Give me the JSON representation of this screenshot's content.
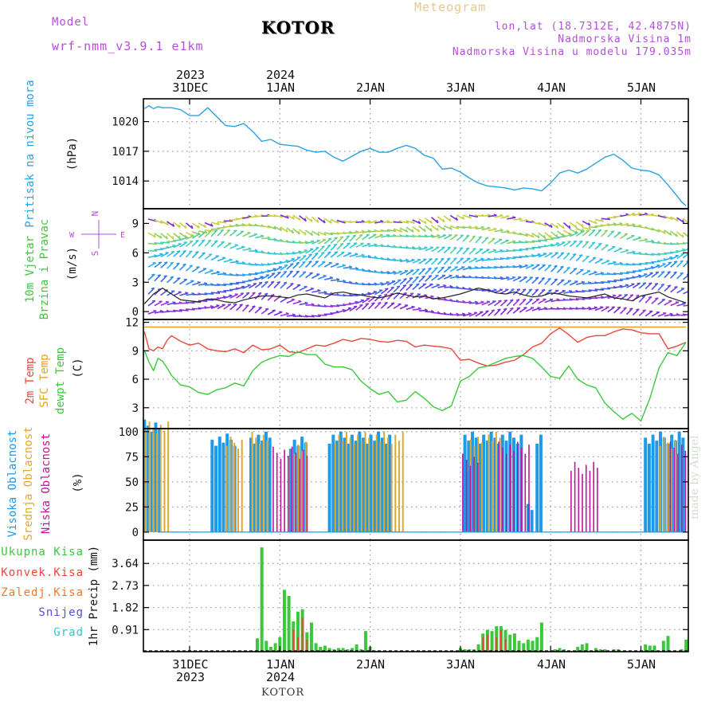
{
  "header": {
    "model_label": "Model",
    "model_name": "wrf-nmm_v3.9.1  e1km",
    "station": "KOTOR",
    "meteogram": "Meteogram",
    "lonlat": "lon,lat (18.7312E, 42.4875N)",
    "altitude": "Nadmorska Visina 1m",
    "model_altitude": "Nadmorska Visina u modelu 179.035m",
    "footer_station": "KOTOR",
    "watermark": "made by Angel"
  },
  "date_axis": {
    "top": [
      {
        "year": "2023",
        "day": "31DEC",
        "day_index": 0
      },
      {
        "year": "2024",
        "day": "1JAN",
        "day_index": 1
      },
      {
        "year": "",
        "day": "2JAN",
        "day_index": 2
      },
      {
        "year": "",
        "day": "3JAN",
        "day_index": 3
      },
      {
        "year": "",
        "day": "4JAN",
        "day_index": 4
      },
      {
        "year": "",
        "day": "5JAN",
        "day_index": 5
      }
    ],
    "bottom": [
      {
        "day": "31DEC",
        "year": "2023",
        "day_index": 0
      },
      {
        "day": "1JAN",
        "year": "2024",
        "day_index": 1
      },
      {
        "day": "2JAN",
        "year": "",
        "day_index": 2
      },
      {
        "day": "3JAN",
        "year": "",
        "day_index": 3
      },
      {
        "day": "4JAN",
        "year": "",
        "day_index": 4
      },
      {
        "day": "5JAN",
        "year": "",
        "day_index": 5
      }
    ]
  },
  "colors": {
    "pressure": "#2aa3e0",
    "temp2m": "#e8483c",
    "sfc_temp": "#e8a020",
    "dewpoint": "#3cc83c",
    "high_cloud": "#1e9be8",
    "mid_cloud": "#e0a830",
    "low_cloud": "#c0149a",
    "total_precip": "#3cc83c",
    "conv_precip": "#e8483c",
    "frozen_precip": "#f07a2a",
    "snow": "#5050e0",
    "hail": "#30c8c8",
    "wind_speed": "#222222",
    "axis_label_purple": "#b44fd8"
  },
  "chart_data": [
    {
      "type": "line",
      "panel": "pressure",
      "ylabel": [
        "Pritisak na nivou mora",
        "(hPa)"
      ],
      "yticks": [
        1014,
        1017,
        1020
      ],
      "ylim": [
        1011.2,
        1022.3
      ],
      "grid": true,
      "series": [
        {
          "name": "Pritisak na nivou mora",
          "x": [
            -0.5,
            -0.45,
            -0.4,
            -0.35,
            -0.3,
            -0.2,
            -0.1,
            0,
            0.1,
            0.2,
            0.3,
            0.4,
            0.5,
            0.6,
            0.7,
            0.8,
            0.9,
            1.0,
            1.1,
            1.2,
            1.3,
            1.4,
            1.5,
            1.6,
            1.7,
            1.8,
            1.9,
            2.0,
            2.1,
            2.2,
            2.3,
            2.4,
            2.5,
            2.6,
            2.7,
            2.8,
            2.9,
            3.0,
            3.1,
            3.2,
            3.3,
            3.4,
            3.5,
            3.6,
            3.7,
            3.8,
            3.9,
            4.0,
            4.1,
            4.2,
            4.3,
            4.4,
            4.5,
            4.6,
            4.7,
            4.8,
            4.9,
            5.0,
            5.1,
            5.2,
            5.3,
            5.4,
            5.45,
            5.5
          ],
          "y": [
            1021.3,
            1021.6,
            1021.3,
            1021.5,
            1021.4,
            1021.4,
            1021.2,
            1020.6,
            1020.6,
            1021.4,
            1020.5,
            1019.6,
            1019.5,
            1019.8,
            1019.0,
            1018.0,
            1018.2,
            1017.7,
            1017.6,
            1017.5,
            1017.1,
            1016.9,
            1017.0,
            1016.4,
            1016.0,
            1016.5,
            1017.0,
            1017.3,
            1016.9,
            1016.9,
            1017.3,
            1017.6,
            1017.3,
            1016.6,
            1016.3,
            1015.2,
            1015.3,
            1014.9,
            1014.3,
            1013.8,
            1013.5,
            1013.4,
            1013.3,
            1013.1,
            1013.3,
            1013.2,
            1013.0,
            1013.8,
            1014.8,
            1015.1,
            1014.8,
            1015.2,
            1015.8,
            1016.4,
            1016.7,
            1016.1,
            1015.3,
            1015.1,
            1015.0,
            1014.6,
            1013.6,
            1012.5,
            1011.9,
            1011.5
          ]
        }
      ]
    },
    {
      "type": "line",
      "panel": "wind",
      "ylabel": [
        "10m Vjetar",
        "Brzina i Pravac",
        "(m/s)"
      ],
      "compass": [
        "N",
        "S",
        "W",
        "E"
      ],
      "yticks": [
        0,
        3,
        6,
        9
      ],
      "ylim": [
        -0.8,
        10.5
      ],
      "series": [
        {
          "name": "Brzina",
          "x": [
            -0.5,
            -0.4,
            -0.3,
            -0.2,
            -0.1,
            0,
            0.1,
            0.2,
            0.3,
            0.4,
            0.5,
            0.6,
            0.7,
            0.8,
            0.9,
            1.0,
            1.1,
            1.2,
            1.3,
            1.4,
            1.5,
            1.6,
            1.7,
            1.8,
            1.9,
            2.0,
            2.1,
            2.2,
            2.3,
            2.4,
            2.5,
            2.6,
            2.7,
            2.8,
            2.9,
            3.0,
            3.1,
            3.2,
            3.3,
            3.4,
            3.5,
            3.6,
            3.7,
            3.8,
            3.9,
            4.0,
            4.1,
            4.2,
            4.3,
            4.4,
            4.5,
            4.6,
            4.7,
            4.8,
            4.9,
            5.0,
            5.1,
            5.2,
            5.3,
            5.4,
            5.5
          ],
          "y": [
            0.8,
            1.8,
            2.4,
            1.8,
            1.2,
            1.1,
            1.0,
            1.3,
            1.2,
            1.0,
            0.9,
            1.2,
            1.4,
            1.6,
            1.6,
            1.5,
            1.4,
            1.7,
            1.8,
            1.6,
            1.4,
            1.9,
            2.0,
            1.8,
            1.7,
            1.5,
            1.4,
            1.6,
            1.9,
            1.7,
            1.5,
            1.6,
            1.3,
            1.4,
            1.6,
            1.8,
            2.1,
            2.4,
            2.2,
            1.9,
            1.8,
            2.0,
            1.7,
            1.5,
            1.6,
            1.9,
            1.8,
            1.6,
            1.5,
            1.4,
            1.6,
            1.8,
            1.4,
            1.3,
            1.1,
            1.6,
            1.8,
            2.0,
            1.5,
            1.2,
            0.9
          ]
        }
      ]
    },
    {
      "type": "line",
      "panel": "temperature",
      "ylabel": [
        "2m Temp",
        "SFC Temp",
        "dewpt Temp",
        "(C)"
      ],
      "yticks": [
        3,
        6,
        9,
        12
      ],
      "ylim": [
        0.8,
        12.3
      ],
      "grid": true,
      "series": [
        {
          "name": "2m Temp",
          "x": [
            -0.5,
            -0.45,
            -0.4,
            -0.35,
            -0.3,
            -0.25,
            -0.2,
            -0.1,
            0,
            0.1,
            0.2,
            0.3,
            0.4,
            0.5,
            0.6,
            0.7,
            0.8,
            0.9,
            1.0,
            1.1,
            1.2,
            1.3,
            1.4,
            1.5,
            1.6,
            1.7,
            1.8,
            1.9,
            2.0,
            2.1,
            2.2,
            2.3,
            2.4,
            2.5,
            2.6,
            2.7,
            2.8,
            2.9,
            3.0,
            3.1,
            3.2,
            3.3,
            3.4,
            3.5,
            3.6,
            3.7,
            3.8,
            3.9,
            4.0,
            4.1,
            4.2,
            4.3,
            4.4,
            4.5,
            4.6,
            4.7,
            4.8,
            4.9,
            5.0,
            5.1,
            5.2,
            5.3,
            5.4,
            5.5
          ],
          "y": [
            11.0,
            9.2,
            9.0,
            9.4,
            9.2,
            10.1,
            10.6,
            10.0,
            9.6,
            9.8,
            9.2,
            9.0,
            8.9,
            9.2,
            8.8,
            9.6,
            9.1,
            9.2,
            9.6,
            8.9,
            8.8,
            9.2,
            9.6,
            9.5,
            9.8,
            10.2,
            10.0,
            10.3,
            10.2,
            10.0,
            9.9,
            10.1,
            10.0,
            9.4,
            9.6,
            9.5,
            9.4,
            9.2,
            8.0,
            8.1,
            7.7,
            7.4,
            7.5,
            7.8,
            8.0,
            8.6,
            9.4,
            9.8,
            10.8,
            11.4,
            10.7,
            9.9,
            10.4,
            10.6,
            10.6,
            11.0,
            11.3,
            11.2,
            10.9,
            10.8,
            10.8,
            9.2,
            9.5,
            9.9
          ]
        },
        {
          "name": "SFC Temp",
          "x": [
            -0.5,
            5.5
          ],
          "y": [
            11.5,
            11.5
          ]
        },
        {
          "name": "dewpt Temp",
          "x": [
            -0.5,
            -0.45,
            -0.4,
            -0.35,
            -0.3,
            -0.25,
            -0.2,
            -0.1,
            0,
            0.1,
            0.2,
            0.3,
            0.4,
            0.5,
            0.6,
            0.7,
            0.8,
            0.9,
            1.0,
            1.1,
            1.2,
            1.3,
            1.4,
            1.5,
            1.6,
            1.7,
            1.8,
            1.9,
            2.0,
            2.1,
            2.2,
            2.3,
            2.4,
            2.5,
            2.6,
            2.7,
            2.8,
            2.9,
            3.0,
            3.1,
            3.2,
            3.3,
            3.4,
            3.5,
            3.6,
            3.7,
            3.8,
            3.9,
            4.0,
            4.1,
            4.2,
            4.3,
            4.4,
            4.5,
            4.6,
            4.7,
            4.8,
            4.9,
            5.0,
            5.1,
            5.2,
            5.3,
            5.4,
            5.5
          ],
          "y": [
            9.0,
            7.8,
            6.9,
            8.2,
            7.9,
            7.2,
            6.4,
            5.4,
            5.2,
            4.6,
            4.4,
            4.9,
            5.1,
            5.6,
            5.3,
            6.9,
            7.8,
            8.2,
            8.5,
            8.4,
            8.9,
            8.6,
            8.6,
            7.6,
            7.3,
            7.3,
            7.0,
            5.8,
            5.0,
            4.4,
            4.7,
            3.6,
            3.8,
            4.7,
            4.0,
            3.1,
            2.7,
            3.2,
            5.8,
            6.3,
            7.2,
            7.4,
            7.8,
            8.2,
            8.4,
            8.5,
            8.2,
            7.3,
            6.3,
            6.1,
            7.4,
            6.0,
            5.4,
            5.1,
            3.5,
            2.6,
            1.8,
            2.4,
            1.6,
            4.0,
            7.2,
            8.8,
            8.5,
            9.9
          ]
        }
      ]
    },
    {
      "type": "bar",
      "panel": "cloud",
      "ylabel": [
        "Visoka Oblacnost",
        "Srednja Oblacnost",
        "Niska Oblacnost",
        "(%)"
      ],
      "yticks": [
        0,
        25,
        50,
        75,
        100
      ],
      "ylim": [
        -8,
        103
      ],
      "grid": true,
      "coverage_ranges": [
        {
          "name": "Visoka Oblacnost",
          "segments": [
            [
              -0.5,
              -0.3,
              100
            ],
            [
              0.25,
              0.52,
              98
            ],
            [
              0.68,
              0.9,
              100
            ],
            [
              1.12,
              1.3,
              95
            ],
            [
              1.55,
              2.25,
              100
            ],
            [
              3.05,
              3.7,
              100
            ],
            [
              3.75,
              3.82,
              28
            ],
            [
              3.85,
              3.9,
              100
            ],
            [
              5.05,
              5.5,
              100
            ]
          ]
        },
        {
          "name": "Srednja Oblacnost",
          "segments": [
            [
              -0.5,
              -0.25,
              98
            ],
            [
              0.4,
              0.6,
              95
            ],
            [
              0.68,
              0.85,
              100
            ],
            [
              1.15,
              1.3,
              90
            ],
            [
              1.6,
              2.35,
              100
            ],
            [
              3.1,
              3.25,
              95
            ],
            [
              3.3,
              3.45,
              100
            ],
            [
              5.2,
              5.4,
              95
            ]
          ]
        },
        {
          "name": "Niska Oblacnost",
          "segments": [
            [
              0.9,
              1.3,
              85
            ],
            [
              3.0,
              3.2,
              78
            ],
            [
              3.4,
              3.75,
              90
            ],
            [
              4.2,
              4.5,
              70
            ],
            [
              5.3,
              5.5,
              90
            ]
          ]
        }
      ]
    },
    {
      "type": "bar",
      "panel": "precip",
      "ylabel": [
        "1hr Precip (mm)"
      ],
      "legend": [
        "Ukupna Kisa",
        "Konvek.Kisa",
        "Zaledj.Kisa",
        "Snijeg",
        "Grad"
      ],
      "yticks": [
        0.91,
        1.82,
        2.73,
        3.64
      ],
      "ylim": [
        0,
        4.6
      ],
      "grid": true,
      "series": [
        {
          "name": "Ukupna Kisa",
          "x": [
            0.75,
            0.8,
            0.85,
            0.9,
            0.95,
            1.0,
            1.05,
            1.1,
            1.15,
            1.2,
            1.25,
            1.3,
            1.35,
            1.4,
            1.45,
            1.5,
            1.55,
            1.6,
            1.65,
            1.7,
            1.75,
            1.8,
            1.85,
            1.9,
            1.95,
            2.0,
            2.05,
            2.1,
            3.0,
            3.05,
            3.1,
            3.15,
            3.2,
            3.25,
            3.3,
            3.35,
            3.4,
            3.45,
            3.5,
            3.55,
            3.6,
            3.65,
            3.7,
            3.75,
            3.8,
            3.85,
            3.9,
            4.05,
            4.1,
            4.15,
            4.3,
            4.35,
            4.4,
            4.5,
            4.55,
            4.6,
            4.7,
            4.75,
            5.05,
            5.1,
            5.15,
            5.25,
            5.3,
            5.45,
            5.5
          ],
          "y": [
            0.55,
            4.3,
            0.45,
            0.2,
            0.35,
            0.6,
            2.55,
            2.3,
            1.25,
            1.65,
            1.75,
            0.8,
            1.2,
            0.35,
            0.2,
            0.25,
            0.15,
            0.1,
            0.15,
            0.15,
            0.1,
            0.15,
            0.3,
            0.1,
            0.85,
            0.2,
            0.05,
            0.05,
            0.15,
            0.1,
            0.1,
            0.1,
            0.3,
            0.75,
            0.9,
            0.85,
            1.05,
            1.05,
            0.9,
            0.7,
            0.75,
            0.45,
            0.35,
            0.5,
            0.45,
            0.6,
            1.2,
            0.1,
            0.15,
            0.1,
            0.2,
            0.3,
            0.35,
            0.15,
            0.1,
            0.1,
            0.1,
            0.1,
            0.3,
            0.25,
            0.25,
            0.45,
            0.65,
            0.1,
            0.5
          ]
        },
        {
          "name": "Konvek.Kisa",
          "x": [
            1.15,
            1.2,
            1.25,
            1.3,
            3.25,
            3.3,
            3.4,
            3.45,
            3.5
          ],
          "y": [
            0.9,
            0.6,
            1.4,
            0.5,
            0.6,
            0.7,
            0.6,
            0.9,
            0.5
          ]
        }
      ]
    }
  ]
}
